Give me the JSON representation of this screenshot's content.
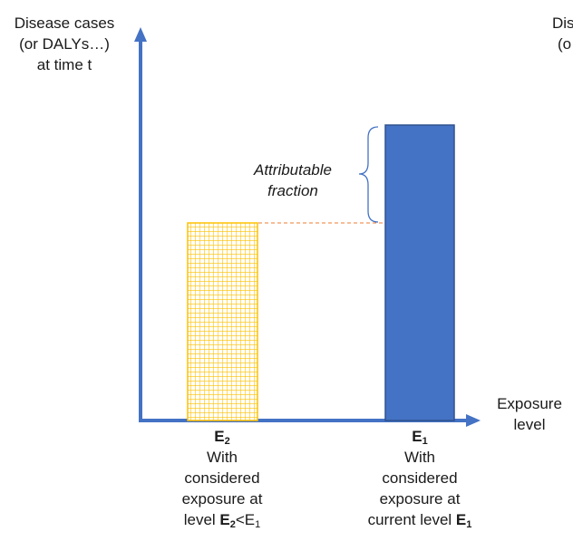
{
  "y_axis_label": [
    "Disease cases",
    "(or DALYs…)",
    "at time t"
  ],
  "y_axis_label_clipped": [
    "Dis",
    "(o"
  ],
  "x_axis_label": [
    "Exposure",
    "level"
  ],
  "bracket_label": [
    "Attributable",
    "fraction"
  ],
  "bars": [
    {
      "key": "E2",
      "level_label": "E",
      "level_sub": "2",
      "desc_lines": [
        "With",
        "considered",
        "exposure at"
      ],
      "last_line_prefix": "level ",
      "last_line_bold": "E",
      "last_line_bold_sub": "2",
      "last_line_suffix": "<E",
      "last_line_suffix_sub": "1",
      "fill": "#FFC000",
      "pattern": "grid"
    },
    {
      "key": "E1",
      "level_label": "E",
      "level_sub": "1",
      "desc_lines": [
        "With",
        "considered",
        "exposure at"
      ],
      "last_line_prefix": "current level ",
      "last_line_bold": "E",
      "last_line_bold_sub": "1",
      "last_line_suffix": "",
      "last_line_suffix_sub": "",
      "fill": "#4472C4",
      "pattern": "solid"
    }
  ],
  "colors": {
    "axis": "#4472C4",
    "dashed_line": "#ED7D31",
    "bracket": "#4472C4"
  }
}
